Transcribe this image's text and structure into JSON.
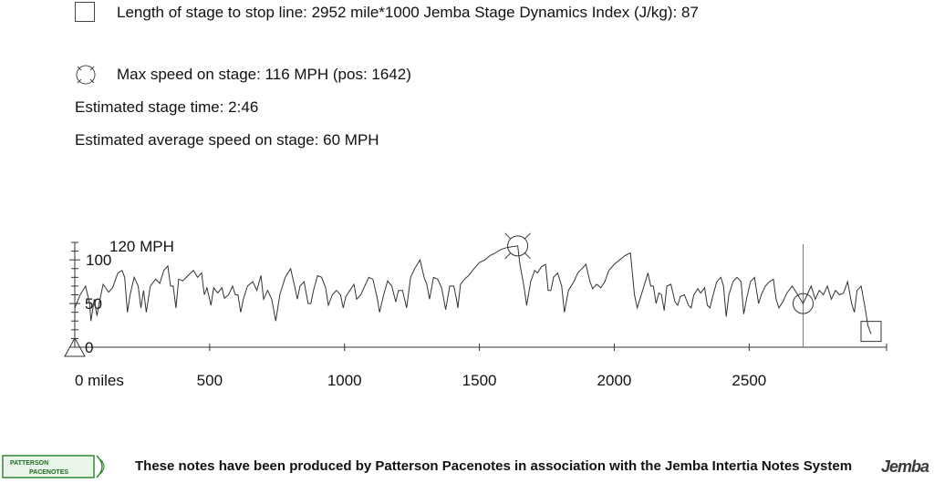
{
  "info": {
    "length_line": "Length of stage to stop line: 2952 mile*1000 Jemba Stage Dynamics Index (J/kg): 87",
    "max_speed_line": "Max speed on stage: 116 MPH (pos: 1642)",
    "stage_time_line": "Estimated stage time: 2:46",
    "avg_speed_line": "Estimated average speed on stage: 60 MPH"
  },
  "footer": {
    "text": "These notes have been produced by Patterson Pacenotes in association with the Jemba Intertia Notes System",
    "logo_left_line1": "PATTERSON",
    "logo_left_line2": "PACENOTES",
    "logo_right": "Jemba"
  },
  "chart_data": {
    "type": "line",
    "title": "",
    "xlabel": "",
    "ylabel": "",
    "y_unit_label": "120 MPH",
    "x_first_tick_label": "0 miles",
    "x_ticks": [
      0,
      500,
      1000,
      1500,
      2000,
      2500
    ],
    "y_ticks": [
      0,
      50,
      100
    ],
    "xlim": [
      0,
      2952
    ],
    "ylim": [
      0,
      120
    ],
    "line_color": "#333333",
    "markers": {
      "max_speed": {
        "x": 1642,
        "y": 116
      },
      "current_position": {
        "x": 2700,
        "y": 50
      },
      "stop_line": {
        "x": 2952,
        "y": 15
      },
      "start": {
        "x": 0,
        "y": 0
      }
    },
    "cursor_x": 2700,
    "series": [
      {
        "values": [
          [
            0,
            45
          ],
          [
            20,
            60
          ],
          [
            40,
            70
          ],
          [
            55,
            50
          ],
          [
            60,
            30
          ],
          [
            72,
            55
          ],
          [
            82,
            36
          ],
          [
            90,
            50
          ],
          [
            105,
            72
          ],
          [
            125,
            63
          ],
          [
            140,
            68
          ],
          [
            160,
            85
          ],
          [
            175,
            88
          ],
          [
            185,
            80
          ],
          [
            195,
            40
          ],
          [
            205,
            60
          ],
          [
            220,
            80
          ],
          [
            235,
            70
          ],
          [
            245,
            45
          ],
          [
            255,
            65
          ],
          [
            265,
            40
          ],
          [
            280,
            70
          ],
          [
            300,
            78
          ],
          [
            315,
            73
          ],
          [
            330,
            88
          ],
          [
            345,
            93
          ],
          [
            355,
            70
          ],
          [
            365,
            70
          ],
          [
            375,
            45
          ],
          [
            385,
            78
          ],
          [
            400,
            76
          ],
          [
            420,
            82
          ],
          [
            440,
            88
          ],
          [
            455,
            80
          ],
          [
            470,
            85
          ],
          [
            480,
            60
          ],
          [
            490,
            68
          ],
          [
            505,
            48
          ],
          [
            515,
            68
          ],
          [
            530,
            62
          ],
          [
            545,
            68
          ],
          [
            555,
            56
          ],
          [
            570,
            60
          ],
          [
            585,
            70
          ],
          [
            595,
            60
          ],
          [
            605,
            60
          ],
          [
            615,
            40
          ],
          [
            625,
            55
          ],
          [
            640,
            70
          ],
          [
            660,
            75
          ],
          [
            675,
            65
          ],
          [
            690,
            82
          ],
          [
            700,
            55
          ],
          [
            715,
            65
          ],
          [
            730,
            55
          ],
          [
            745,
            30
          ],
          [
            760,
            60
          ],
          [
            780,
            80
          ],
          [
            800,
            90
          ],
          [
            815,
            70
          ],
          [
            825,
            55
          ],
          [
            835,
            70
          ],
          [
            850,
            75
          ],
          [
            865,
            50
          ],
          [
            875,
            50
          ],
          [
            885,
            65
          ],
          [
            900,
            82
          ],
          [
            915,
            80
          ],
          [
            930,
            68
          ],
          [
            940,
            48
          ],
          [
            955,
            60
          ],
          [
            970,
            65
          ],
          [
            985,
            60
          ],
          [
            995,
            45
          ],
          [
            1005,
            58
          ],
          [
            1020,
            65
          ],
          [
            1035,
            72
          ],
          [
            1045,
            55
          ],
          [
            1060,
            60
          ],
          [
            1075,
            70
          ],
          [
            1090,
            80
          ],
          [
            1105,
            78
          ],
          [
            1120,
            58
          ],
          [
            1130,
            40
          ],
          [
            1145,
            60
          ],
          [
            1160,
            76
          ],
          [
            1175,
            70
          ],
          [
            1190,
            52
          ],
          [
            1200,
            65
          ],
          [
            1215,
            65
          ],
          [
            1230,
            45
          ],
          [
            1245,
            80
          ],
          [
            1260,
            90
          ],
          [
            1280,
            100
          ],
          [
            1295,
            80
          ],
          [
            1305,
            72
          ],
          [
            1315,
            55
          ],
          [
            1330,
            80
          ],
          [
            1345,
            78
          ],
          [
            1360,
            68
          ],
          [
            1375,
            43
          ],
          [
            1390,
            70
          ],
          [
            1405,
            70
          ],
          [
            1415,
            55
          ],
          [
            1420,
            45
          ],
          [
            1430,
            72
          ],
          [
            1445,
            78
          ],
          [
            1460,
            82
          ],
          [
            1480,
            90
          ],
          [
            1500,
            97
          ],
          [
            1520,
            100
          ],
          [
            1540,
            105
          ],
          [
            1560,
            108
          ],
          [
            1580,
            112
          ],
          [
            1600,
            114
          ],
          [
            1620,
            115
          ],
          [
            1642,
            116
          ],
          [
            1650,
            95
          ],
          [
            1665,
            70
          ],
          [
            1675,
            48
          ],
          [
            1690,
            75
          ],
          [
            1705,
            88
          ],
          [
            1715,
            85
          ],
          [
            1730,
            92
          ],
          [
            1745,
            95
          ],
          [
            1755,
            65
          ],
          [
            1765,
            65
          ],
          [
            1775,
            80
          ],
          [
            1790,
            85
          ],
          [
            1805,
            70
          ],
          [
            1815,
            40
          ],
          [
            1830,
            65
          ],
          [
            1850,
            75
          ],
          [
            1865,
            85
          ],
          [
            1880,
            90
          ],
          [
            1895,
            95
          ],
          [
            1910,
            75
          ],
          [
            1920,
            67
          ],
          [
            1935,
            72
          ],
          [
            1950,
            68
          ],
          [
            1965,
            75
          ],
          [
            1980,
            88
          ],
          [
            2000,
            95
          ],
          [
            2020,
            100
          ],
          [
            2040,
            105
          ],
          [
            2060,
            108
          ],
          [
            2075,
            60
          ],
          [
            2085,
            45
          ],
          [
            2095,
            55
          ],
          [
            2110,
            70
          ],
          [
            2125,
            85
          ],
          [
            2135,
            70
          ],
          [
            2145,
            70
          ],
          [
            2155,
            50
          ],
          [
            2165,
            62
          ],
          [
            2175,
            60
          ],
          [
            2185,
            42
          ],
          [
            2195,
            70
          ],
          [
            2210,
            72
          ],
          [
            2225,
            52
          ],
          [
            2235,
            48
          ],
          [
            2245,
            58
          ],
          [
            2260,
            60
          ],
          [
            2275,
            48
          ],
          [
            2285,
            45
          ],
          [
            2295,
            60
          ],
          [
            2310,
            67
          ],
          [
            2320,
            62
          ],
          [
            2335,
            68
          ],
          [
            2345,
            48
          ],
          [
            2355,
            45
          ],
          [
            2365,
            58
          ],
          [
            2380,
            75
          ],
          [
            2395,
            80
          ],
          [
            2405,
            70
          ],
          [
            2415,
            35
          ],
          [
            2425,
            60
          ],
          [
            2440,
            75
          ],
          [
            2455,
            80
          ],
          [
            2470,
            75
          ],
          [
            2480,
            38
          ],
          [
            2490,
            55
          ],
          [
            2505,
            75
          ],
          [
            2520,
            80
          ],
          [
            2535,
            50
          ],
          [
            2545,
            60
          ],
          [
            2560,
            70
          ],
          [
            2575,
            75
          ],
          [
            2590,
            78
          ],
          [
            2600,
            55
          ],
          [
            2610,
            45
          ],
          [
            2625,
            52
          ],
          [
            2640,
            62
          ],
          [
            2660,
            70
          ],
          [
            2680,
            60
          ],
          [
            2700,
            50
          ],
          [
            2715,
            60
          ],
          [
            2730,
            70
          ],
          [
            2745,
            55
          ],
          [
            2760,
            65
          ],
          [
            2775,
            60
          ],
          [
            2790,
            70
          ],
          [
            2805,
            55
          ],
          [
            2820,
            65
          ],
          [
            2835,
            60
          ],
          [
            2850,
            62
          ],
          [
            2865,
            75
          ],
          [
            2880,
            50
          ],
          [
            2890,
            40
          ],
          [
            2900,
            65
          ],
          [
            2915,
            70
          ],
          [
            2930,
            45
          ],
          [
            2940,
            25
          ],
          [
            2952,
            15
          ]
        ]
      }
    ]
  }
}
